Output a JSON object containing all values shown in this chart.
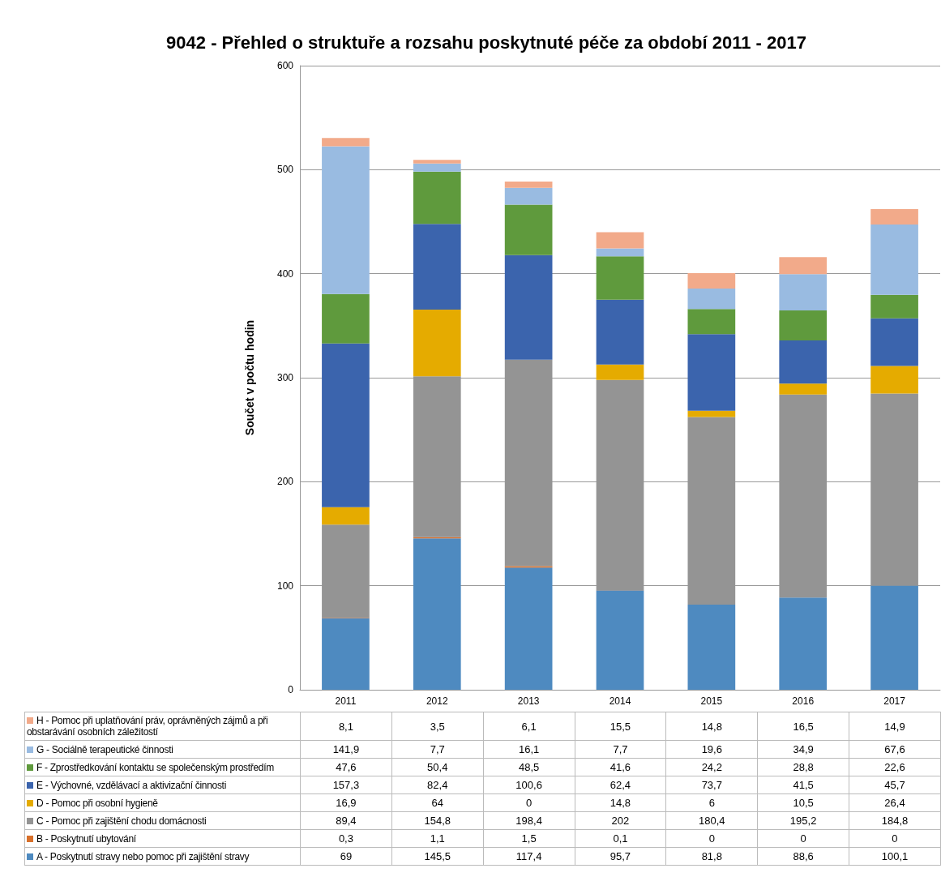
{
  "chart_data": {
    "type": "bar",
    "stacked": true,
    "title": "9042 - Přehled o struktuře a rozsahu poskytnuté péče za období 2011 - 2017",
    "ylabel": "Součet v počtu hodin",
    "categories": [
      "2011",
      "2012",
      "2013",
      "2014",
      "2015",
      "2016",
      "2017"
    ],
    "series": [
      {
        "name": "A - Poskytnutí stravy nebo pomoc při zajištění stravy",
        "color": "#4e8ac0",
        "values": [
          69,
          145.5,
          117.4,
          95.7,
          81.8,
          88.6,
          100.1
        ],
        "value_labels": [
          "69",
          "145,5",
          "117,4",
          "95,7",
          "81,8",
          "88,6",
          "100,1"
        ]
      },
      {
        "name": "B - Poskytnutí ubytování",
        "color": "#d8702b",
        "values": [
          0.3,
          1.1,
          1.5,
          0.1,
          0,
          0,
          0
        ],
        "value_labels": [
          "0,3",
          "1,1",
          "1,5",
          "0,1",
          "0",
          "0",
          "0"
        ]
      },
      {
        "name": "C - Pomoc při zajištění chodu domácnosti",
        "color": "#949494",
        "values": [
          89.4,
          154.8,
          198.4,
          202,
          180.4,
          195.2,
          184.8
        ],
        "value_labels": [
          "89,4",
          "154,8",
          "198,4",
          "202",
          "180,4",
          "195,2",
          "184,8"
        ]
      },
      {
        "name": "D - Pomoc při osobní hygieně",
        "color": "#e5ab00",
        "values": [
          16.9,
          64,
          0,
          14.8,
          6,
          10.5,
          26.4
        ],
        "value_labels": [
          "16,9",
          "64",
          "0",
          "14,8",
          "6",
          "10,5",
          "26,4"
        ]
      },
      {
        "name": "E - Výchovné, vzdělávací a aktivizační činnosti",
        "color": "#3b64ad",
        "values": [
          157.3,
          82.4,
          100.6,
          62.4,
          73.7,
          41.5,
          45.7
        ],
        "value_labels": [
          "157,3",
          "82,4",
          "100,6",
          "62,4",
          "73,7",
          "41,5",
          "45,7"
        ]
      },
      {
        "name": "F - Zprostředkování kontaktu se společenským prostředím",
        "color": "#5f9a3d",
        "values": [
          47.6,
          50.4,
          48.5,
          41.6,
          24.2,
          28.8,
          22.6
        ],
        "value_labels": [
          "47,6",
          "50,4",
          "48,5",
          "41,6",
          "24,2",
          "28,8",
          "22,6"
        ]
      },
      {
        "name": "G - Sociálně terapeutické činnosti",
        "color": "#99bbe1",
        "values": [
          141.9,
          7.7,
          16.1,
          7.7,
          19.6,
          34.9,
          67.6
        ],
        "value_labels": [
          "141,9",
          "7,7",
          "16,1",
          "7,7",
          "19,6",
          "34,9",
          "67,6"
        ]
      },
      {
        "name": "H - Pomoc při uplatňování práv, oprávněných zájmů a při obstarávání osobních záležitostí",
        "color": "#f2aa8a",
        "values": [
          8.1,
          3.5,
          6.1,
          15.5,
          14.8,
          16.5,
          14.9
        ],
        "value_labels": [
          "8,1",
          "3,5",
          "6,1",
          "15,5",
          "14,8",
          "16,5",
          "14,9"
        ]
      }
    ],
    "ylim": [
      0,
      600
    ],
    "yticks": [
      0,
      100,
      200,
      300,
      400,
      500,
      600
    ],
    "grid": "y",
    "legend": "bottom"
  }
}
